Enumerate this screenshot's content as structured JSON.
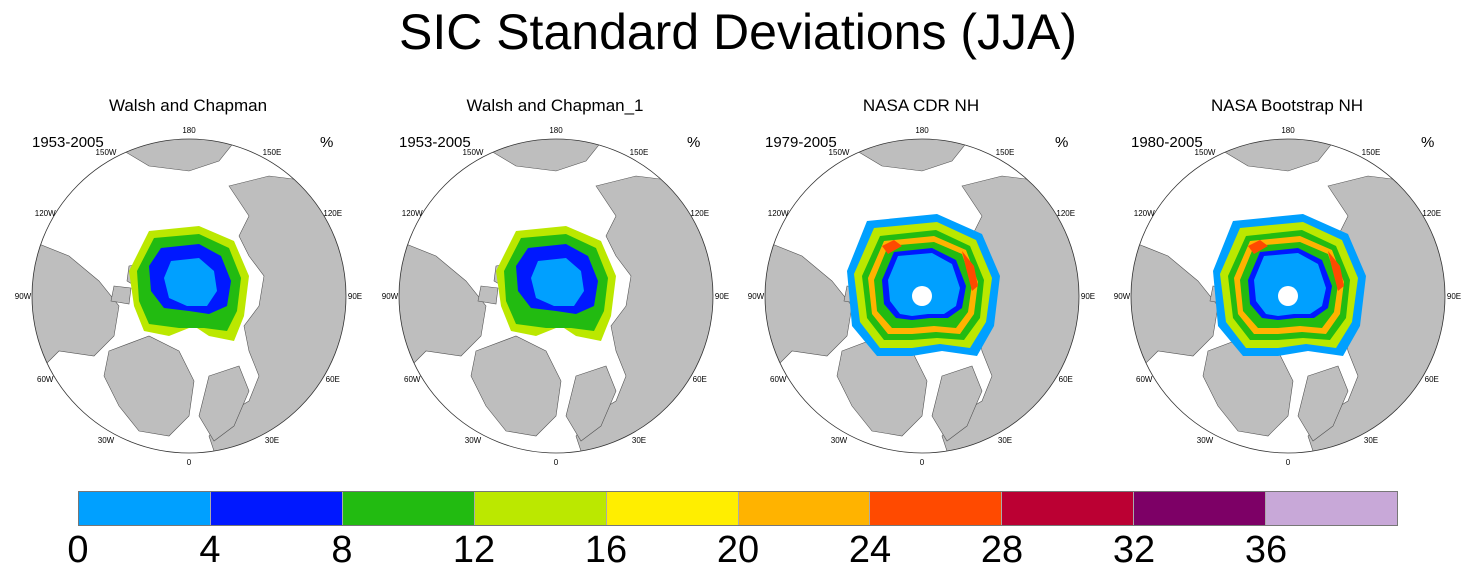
{
  "title": "SIC Standard Deviations (JJA)",
  "unit": "%",
  "panels": [
    {
      "title": "Walsh and Chapman",
      "period": "1953-2005",
      "variant": "wc"
    },
    {
      "title": "Walsh and Chapman_1",
      "period": "1953-2005",
      "variant": "wc"
    },
    {
      "title": "NASA CDR NH",
      "period": "1979-2005",
      "variant": "cdr"
    },
    {
      "title": "NASA Bootstrap NH",
      "period": "1980-2005",
      "variant": "bs"
    }
  ],
  "lon_labels": [
    "180",
    "150E",
    "120E",
    "90E",
    "60E",
    "30E",
    "0",
    "30W",
    "60W",
    "90W",
    "120W",
    "150W"
  ],
  "colorbar": {
    "colors": [
      "#00a0ff",
      "#0018ff",
      "#22bb11",
      "#bbe800",
      "#ffee00",
      "#ffb300",
      "#ff4a00",
      "#bb0033",
      "#7d0066",
      "#c8a8d8"
    ],
    "ticks": [
      "0",
      "4",
      "8",
      "12",
      "16",
      "20",
      "24",
      "28",
      "32",
      "36"
    ]
  },
  "map_colors": {
    "land": "#bebebe",
    "ocean": "#ffffff",
    "coast": "#555555"
  }
}
